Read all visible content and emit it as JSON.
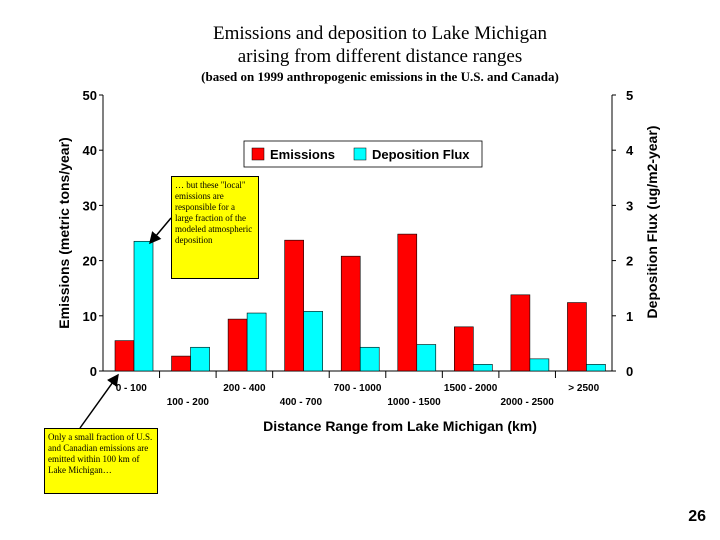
{
  "page": {
    "title_line1": "Emissions and deposition to Lake Michigan",
    "title_line2": "arising from different distance ranges",
    "subtitle": "(based on 1999 anthropogenic emissions in the U.S. and Canada)",
    "page_number": "26"
  },
  "callouts": {
    "top": "… but these \"local\" emissions are responsible for a large fraction of the modeled atmospheric deposition",
    "bottom": "Only a small fraction of U.S. and Canadian emissions are emitted within 100 km of Lake Michigan…"
  },
  "chart_data": {
    "type": "bar",
    "title": "Emissions and deposition to Lake Michigan arising from different distance ranges",
    "subtitle": "(based on 1999 anthropogenic emissions in the U.S. and Canada)",
    "xlabel": "Distance Range from Lake Michigan (km)",
    "ylabel_left": "Emissions (metric tons/year)",
    "ylabel_right": "Deposition Flux (ug/m2-year)",
    "ylim_left": [
      0,
      50
    ],
    "ylim_right": [
      0,
      5
    ],
    "yticks_left": [
      "0",
      "10",
      "20",
      "30",
      "40",
      "50"
    ],
    "yticks_right": [
      "0",
      "1",
      "2",
      "3",
      "4",
      "5"
    ],
    "categories": [
      "0 - 100",
      "100 - 200",
      "200 - 400",
      "400 - 700",
      "700 - 1000",
      "1000 - 1500",
      "1500 - 2000",
      "2000 - 2500",
      "> 2500"
    ],
    "legend_position": "top-center",
    "series": [
      {
        "name": "Emissions",
        "axis": "left",
        "color": "#ff0000",
        "values": [
          5.5,
          2.7,
          9.4,
          23.7,
          20.8,
          24.8,
          8.0,
          13.8,
          12.4
        ]
      },
      {
        "name": "Deposition Flux",
        "axis": "right",
        "color": "#00ffff",
        "values": [
          2.35,
          0.43,
          1.05,
          1.08,
          0.43,
          0.48,
          0.12,
          0.22,
          0.12
        ]
      }
    ]
  }
}
